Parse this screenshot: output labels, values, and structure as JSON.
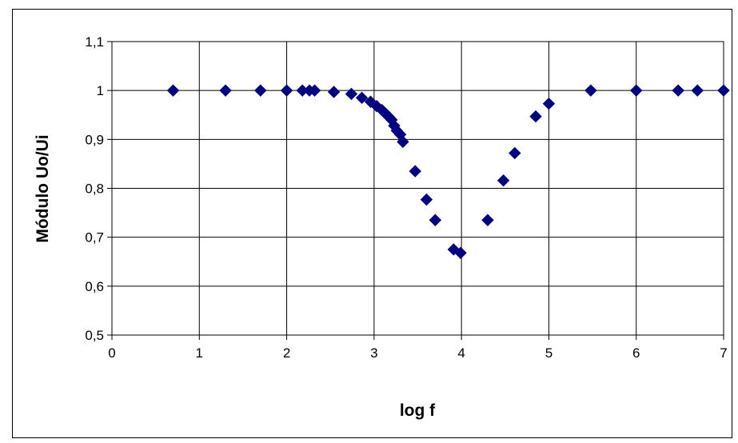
{
  "chart_data": {
    "type": "scatter",
    "title": "",
    "xlabel": "log f",
    "ylabel": "Módulo Uo/Ui",
    "xlim": [
      0,
      7
    ],
    "ylim": [
      0.5,
      1.1
    ],
    "x_ticks": [
      0,
      1,
      2,
      3,
      4,
      5,
      6,
      7
    ],
    "x_tick_labels": [
      "0",
      "1",
      "2",
      "3",
      "4",
      "5",
      "6",
      "7"
    ],
    "y_ticks": [
      0.5,
      0.6,
      0.7,
      0.8,
      0.9,
      1.0,
      1.1
    ],
    "y_tick_labels": [
      "0,5",
      "0,6",
      "0,7",
      "0,8",
      "0,9",
      "1",
      "1,1"
    ],
    "grid": true,
    "legend": "none",
    "marker": "diamond",
    "marker_color": "#000080",
    "series": [
      {
        "x": [
          0.7,
          1.3,
          1.7,
          2.0,
          2.18,
          2.26,
          2.32,
          2.54,
          2.74,
          2.86,
          2.96,
          3.03,
          3.09,
          3.13,
          3.17,
          3.2,
          3.23,
          3.26,
          3.3,
          3.33,
          3.47,
          3.6,
          3.7,
          3.91,
          3.99,
          4.3,
          4.48,
          4.61,
          4.85,
          5.0,
          5.48,
          6.0,
          6.48,
          6.7,
          7.0
        ],
        "y": [
          1.0,
          1.0,
          1.0,
          1.0,
          1.0,
          1.0,
          1.0,
          0.997,
          0.993,
          0.985,
          0.977,
          0.968,
          0.96,
          0.953,
          0.946,
          0.94,
          0.928,
          0.918,
          0.91,
          0.895,
          0.835,
          0.777,
          0.735,
          0.675,
          0.668,
          0.735,
          0.816,
          0.872,
          0.947,
          0.973,
          1.0,
          1.0,
          1.0,
          1.0,
          1.0
        ]
      }
    ]
  }
}
